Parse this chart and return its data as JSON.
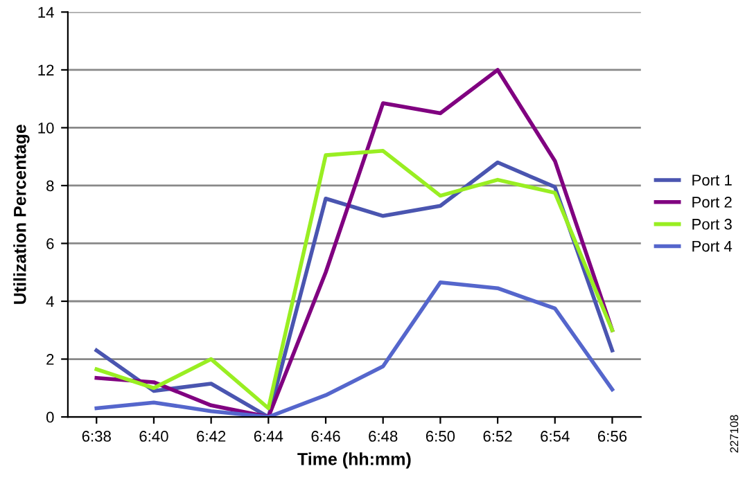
{
  "chart_data": {
    "type": "line",
    "xlabel": "Time (hh:mm)",
    "ylabel": "Utilization Percentage",
    "categories": [
      "6:38",
      "6:40",
      "6:42",
      "6:44",
      "6:46",
      "6:48",
      "6:50",
      "6:52",
      "6:54",
      "6:56"
    ],
    "series": [
      {
        "name": "Port 1",
        "color": "#4a55b0",
        "values": [
          2.3,
          0.9,
          1.15,
          0,
          7.55,
          6.95,
          7.3,
          8.8,
          7.95,
          2.3
        ]
      },
      {
        "name": "Port 2",
        "color": "#800080",
        "values": [
          1.35,
          1.2,
          0.4,
          0,
          5.0,
          10.85,
          10.5,
          12.0,
          8.85,
          3.0
        ]
      },
      {
        "name": "Port 3",
        "color": "#99ee22",
        "values": [
          1.65,
          1.0,
          2.0,
          0.3,
          9.05,
          9.2,
          7.65,
          8.2,
          7.75,
          3.0
        ]
      },
      {
        "name": "Port 4",
        "color": "#5566cc",
        "values": [
          0.3,
          0.5,
          0.2,
          0,
          0.75,
          1.75,
          4.65,
          4.45,
          3.75,
          0.95
        ]
      }
    ],
    "ylim": [
      0,
      14
    ],
    "yticks": [
      0,
      2,
      4,
      6,
      8,
      10,
      12,
      14
    ],
    "grid": "y",
    "legend": "right",
    "marker": "none",
    "line_style": "solid",
    "annotations": [
      "227108"
    ]
  }
}
